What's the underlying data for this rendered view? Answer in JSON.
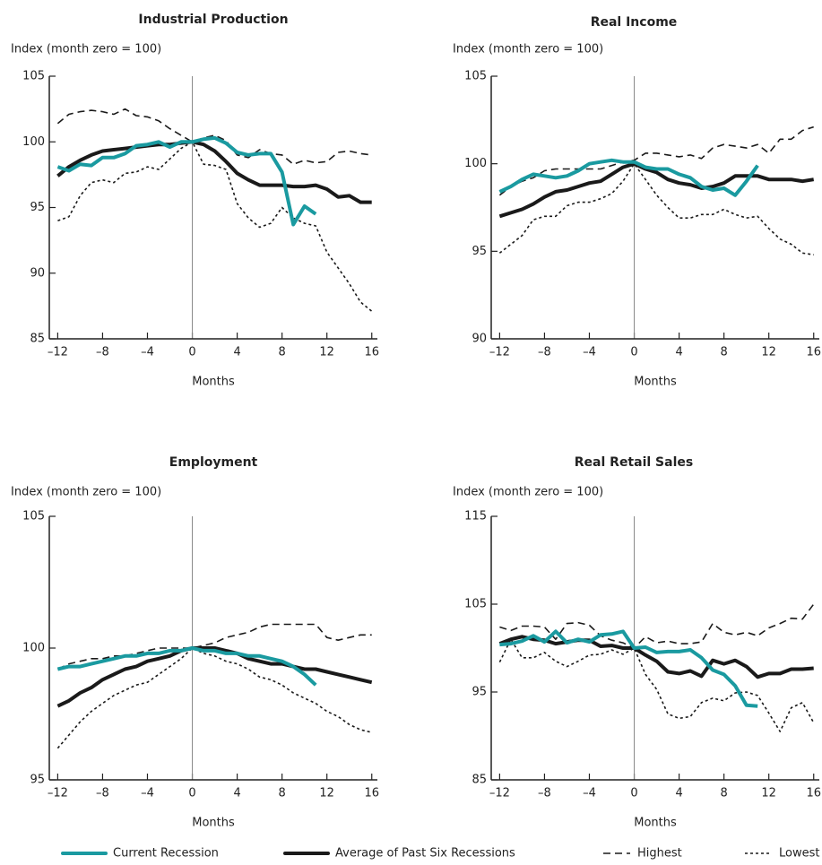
{
  "chart_data": [
    {
      "type": "line",
      "title": "Industrial Production",
      "y_label": "Index (month zero = 100)",
      "x_label": "Months",
      "x": [
        -12,
        -11,
        -10,
        -9,
        -8,
        -7,
        -6,
        -5,
        -4,
        -3,
        -2,
        -1,
        0,
        1,
        2,
        3,
        4,
        5,
        6,
        7,
        8,
        9,
        10,
        11,
        12,
        13,
        14,
        15,
        16
      ],
      "xlim": [
        -12.75,
        16.5
      ],
      "xticks": [
        {
          "value": -12,
          "label": "–12"
        },
        {
          "value": -8,
          "label": "–8"
        },
        {
          "value": -4,
          "label": "–4"
        },
        0,
        4,
        8,
        12,
        16
      ],
      "ylim": [
        85,
        105
      ],
      "yticks": [
        85,
        90,
        95,
        100,
        105
      ],
      "reference_x": 0,
      "series": [
        {
          "name": "Current Recession",
          "color": "#1a9aa0",
          "style": "thick",
          "values": [
            98.1,
            97.8,
            98.3,
            98.2,
            98.8,
            98.8,
            99.1,
            99.7,
            99.8,
            100.0,
            99.6,
            100.0,
            100,
            100.2,
            100.3,
            99.9,
            99.2,
            99.0,
            99.1,
            99.1,
            97.7,
            93.7,
            95.1,
            94.5,
            null,
            null,
            null,
            null,
            null
          ]
        },
        {
          "name": "Average of Past Six Recessions",
          "color": "#1a1a1a",
          "style": "thick",
          "values": [
            97.4,
            98.1,
            98.6,
            99.0,
            99.3,
            99.4,
            99.5,
            99.6,
            99.7,
            99.8,
            99.8,
            99.9,
            100,
            99.8,
            99.3,
            98.5,
            97.6,
            97.1,
            96.7,
            96.7,
            96.7,
            96.6,
            96.6,
            96.7,
            96.4,
            95.8,
            95.9,
            95.4,
            95.4
          ]
        },
        {
          "name": "Highest",
          "color": "#1a1a1a",
          "style": "dashed",
          "values": [
            101.4,
            102.1,
            102.3,
            102.4,
            102.3,
            102.1,
            102.5,
            102.0,
            101.9,
            101.6,
            101.0,
            100.5,
            100,
            100.3,
            100.5,
            100.1,
            99.0,
            98.8,
            99.4,
            99.1,
            99.0,
            98.3,
            98.6,
            98.4,
            98.5,
            99.2,
            99.3,
            99.1,
            99.0
          ]
        },
        {
          "name": "Lowest",
          "color": "#1a1a1a",
          "style": "dotted",
          "values": [
            94.0,
            94.3,
            95.9,
            96.9,
            97.1,
            96.9,
            97.6,
            97.7,
            98.1,
            97.9,
            98.7,
            99.5,
            100,
            98.3,
            98.2,
            97.9,
            95.3,
            94.2,
            93.5,
            93.8,
            95.0,
            94.2,
            93.8,
            93.6,
            91.6,
            90.4,
            89.2,
            87.8,
            87.1
          ]
        }
      ]
    },
    {
      "type": "line",
      "title": "Real Income",
      "y_label": "Index (month zero = 100)",
      "x_label": "Months",
      "x": [
        -12,
        -11,
        -10,
        -9,
        -8,
        -7,
        -6,
        -5,
        -4,
        -3,
        -2,
        -1,
        0,
        1,
        2,
        3,
        4,
        5,
        6,
        7,
        8,
        9,
        10,
        11,
        12,
        13,
        14,
        15,
        16
      ],
      "xlim": [
        -12.75,
        16.5
      ],
      "xticks": [
        {
          "value": -12,
          "label": "–12"
        },
        {
          "value": -8,
          "label": "–8"
        },
        {
          "value": -4,
          "label": "–4"
        },
        0,
        4,
        8,
        12,
        16
      ],
      "ylim": [
        90,
        105
      ],
      "yticks": [
        90,
        95,
        100,
        105
      ],
      "reference_x": 0,
      "series": [
        {
          "color": "#1a9aa0",
          "style": "thick",
          "values": [
            98.4,
            98.7,
            99.1,
            99.4,
            99.3,
            99.2,
            99.3,
            99.6,
            100.0,
            100.1,
            100.2,
            100.1,
            100.1,
            99.8,
            99.7,
            99.7,
            99.4,
            99.2,
            98.7,
            98.5,
            98.6,
            98.2,
            99.0,
            99.9,
            null,
            null,
            null,
            null,
            null
          ]
        },
        {
          "color": "#1a1a1a",
          "style": "thick",
          "values": [
            97.0,
            97.2,
            97.4,
            97.7,
            98.1,
            98.4,
            98.5,
            98.7,
            98.9,
            99.0,
            99.4,
            99.8,
            100,
            99.7,
            99.5,
            99.1,
            98.9,
            98.8,
            98.6,
            98.7,
            98.9,
            99.3,
            99.3,
            99.3,
            99.1,
            99.1,
            99.1,
            99.0,
            99.1
          ]
        },
        {
          "color": "#1a1a1a",
          "style": "dashed",
          "values": [
            98.2,
            98.7,
            99.0,
            99.2,
            99.6,
            99.7,
            99.7,
            99.7,
            99.7,
            99.7,
            99.9,
            100.1,
            100.2,
            100.6,
            100.6,
            100.5,
            100.4,
            100.5,
            100.3,
            100.9,
            101.1,
            101.0,
            100.9,
            101.1,
            100.6,
            101.4,
            101.4,
            101.9,
            102.1
          ]
        },
        {
          "color": "#1a1a1a",
          "style": "dotted",
          "values": [
            94.9,
            95.4,
            95.9,
            96.8,
            97.0,
            97.0,
            97.6,
            97.8,
            97.8,
            98.0,
            98.3,
            99.0,
            100,
            99.1,
            98.2,
            97.5,
            96.9,
            96.9,
            97.1,
            97.1,
            97.4,
            97.1,
            96.9,
            97.0,
            96.3,
            95.7,
            95.4,
            94.9,
            94.8
          ]
        }
      ]
    },
    {
      "type": "line",
      "title": "Employment",
      "y_label": "Index (month zero = 100)",
      "x_label": "Months",
      "x": [
        -12,
        -11,
        -10,
        -9,
        -8,
        -7,
        -6,
        -5,
        -4,
        -3,
        -2,
        -1,
        0,
        1,
        2,
        3,
        4,
        5,
        6,
        7,
        8,
        9,
        10,
        11,
        12,
        13,
        14,
        15,
        16
      ],
      "xlim": [
        -12.75,
        16.5
      ],
      "xticks": [
        {
          "value": -12,
          "label": "–12"
        },
        {
          "value": -8,
          "label": "–8"
        },
        {
          "value": -4,
          "label": "–4"
        },
        0,
        4,
        8,
        12,
        16
      ],
      "ylim": [
        95,
        105
      ],
      "yticks": [
        95,
        100,
        105
      ],
      "reference_x": 0,
      "series": [
        {
          "color": "#1a9aa0",
          "style": "thick",
          "values": [
            99.2,
            99.3,
            99.3,
            99.4,
            99.5,
            99.6,
            99.7,
            99.7,
            99.8,
            99.8,
            99.9,
            99.9,
            100,
            99.9,
            99.9,
            99.8,
            99.8,
            99.7,
            99.7,
            99.6,
            99.5,
            99.3,
            99.0,
            98.6,
            null,
            null,
            null,
            null,
            null
          ]
        },
        {
          "color": "#1a1a1a",
          "style": "thick",
          "values": [
            97.8,
            98.0,
            98.3,
            98.5,
            98.8,
            99.0,
            99.2,
            99.3,
            99.5,
            99.6,
            99.7,
            99.9,
            100,
            100.0,
            100.0,
            99.9,
            99.8,
            99.6,
            99.5,
            99.4,
            99.4,
            99.3,
            99.2,
            99.2,
            99.1,
            99.0,
            98.9,
            98.8,
            98.7
          ]
        },
        {
          "color": "#1a1a1a",
          "style": "dashed",
          "values": [
            99.2,
            99.4,
            99.5,
            99.6,
            99.6,
            99.7,
            99.7,
            99.8,
            99.9,
            100.0,
            100.0,
            100.0,
            100,
            100.1,
            100.2,
            100.4,
            100.5,
            100.6,
            100.8,
            100.9,
            100.9,
            100.9,
            100.9,
            100.9,
            100.4,
            100.3,
            100.4,
            100.5,
            100.5
          ]
        },
        {
          "color": "#1a1a1a",
          "style": "dotted",
          "values": [
            96.2,
            96.7,
            97.2,
            97.6,
            97.9,
            98.2,
            98.4,
            98.6,
            98.7,
            99.0,
            99.3,
            99.6,
            100,
            99.8,
            99.7,
            99.5,
            99.4,
            99.2,
            98.9,
            98.8,
            98.6,
            98.3,
            98.1,
            97.9,
            97.6,
            97.4,
            97.1,
            96.9,
            96.8
          ]
        }
      ]
    },
    {
      "type": "line",
      "title": "Real Retail Sales",
      "y_label": "Index (month zero = 100)",
      "x_label": "Months",
      "x": [
        -12,
        -11,
        -10,
        -9,
        -8,
        -7,
        -6,
        -5,
        -4,
        -3,
        -2,
        -1,
        0,
        1,
        2,
        3,
        4,
        5,
        6,
        7,
        8,
        9,
        10,
        11,
        12,
        13,
        14,
        15,
        16
      ],
      "xlim": [
        -12.75,
        16.5
      ],
      "xticks": [
        {
          "value": -12,
          "label": "–12"
        },
        {
          "value": -8,
          "label": "–8"
        },
        {
          "value": -4,
          "label": "–4"
        },
        0,
        4,
        8,
        12,
        16
      ],
      "ylim": [
        85,
        115
      ],
      "yticks": [
        85,
        95,
        105,
        115
      ],
      "reference_x": 0,
      "series": [
        {
          "color": "#1a9aa0",
          "style": "thick",
          "values": [
            100.4,
            100.5,
            100.8,
            101.4,
            100.7,
            101.9,
            100.6,
            101.0,
            100.7,
            101.5,
            101.6,
            101.9,
            100,
            100.1,
            99.5,
            99.6,
            99.6,
            99.8,
            98.9,
            97.5,
            97.0,
            95.7,
            93.5,
            93.4,
            null,
            null,
            null,
            null,
            null
          ]
        },
        {
          "color": "#1a1a1a",
          "style": "thick",
          "values": [
            100.5,
            101.0,
            101.3,
            101.0,
            100.9,
            100.5,
            100.7,
            100.9,
            100.9,
            100.2,
            100.3,
            100.0,
            100,
            99.2,
            98.5,
            97.3,
            97.1,
            97.4,
            96.8,
            98.6,
            98.2,
            98.6,
            97.9,
            96.7,
            97.1,
            97.1,
            97.6,
            97.6,
            97.7
          ]
        },
        {
          "color": "#1a1a1a",
          "style": "dashed",
          "values": [
            102.4,
            102.0,
            102.5,
            102.5,
            102.4,
            101.0,
            102.8,
            102.9,
            102.6,
            101.4,
            100.9,
            100.6,
            100,
            101.3,
            100.6,
            100.8,
            100.5,
            100.5,
            100.7,
            102.8,
            101.8,
            101.5,
            101.8,
            101.4,
            102.3,
            102.8,
            103.4,
            103.3,
            105.0
          ]
        },
        {
          "color": "#1a1a1a",
          "style": "dotted",
          "values": [
            98.4,
            101.0,
            98.9,
            98.9,
            99.5,
            98.5,
            97.9,
            98.5,
            99.2,
            99.3,
            99.8,
            99.3,
            100,
            97.0,
            95.3,
            92.5,
            92.0,
            92.2,
            93.8,
            94.3,
            94.0,
            94.9,
            95.0,
            94.6,
            92.6,
            90.5,
            93.2,
            93.8,
            91.5
          ]
        }
      ]
    }
  ]
}
